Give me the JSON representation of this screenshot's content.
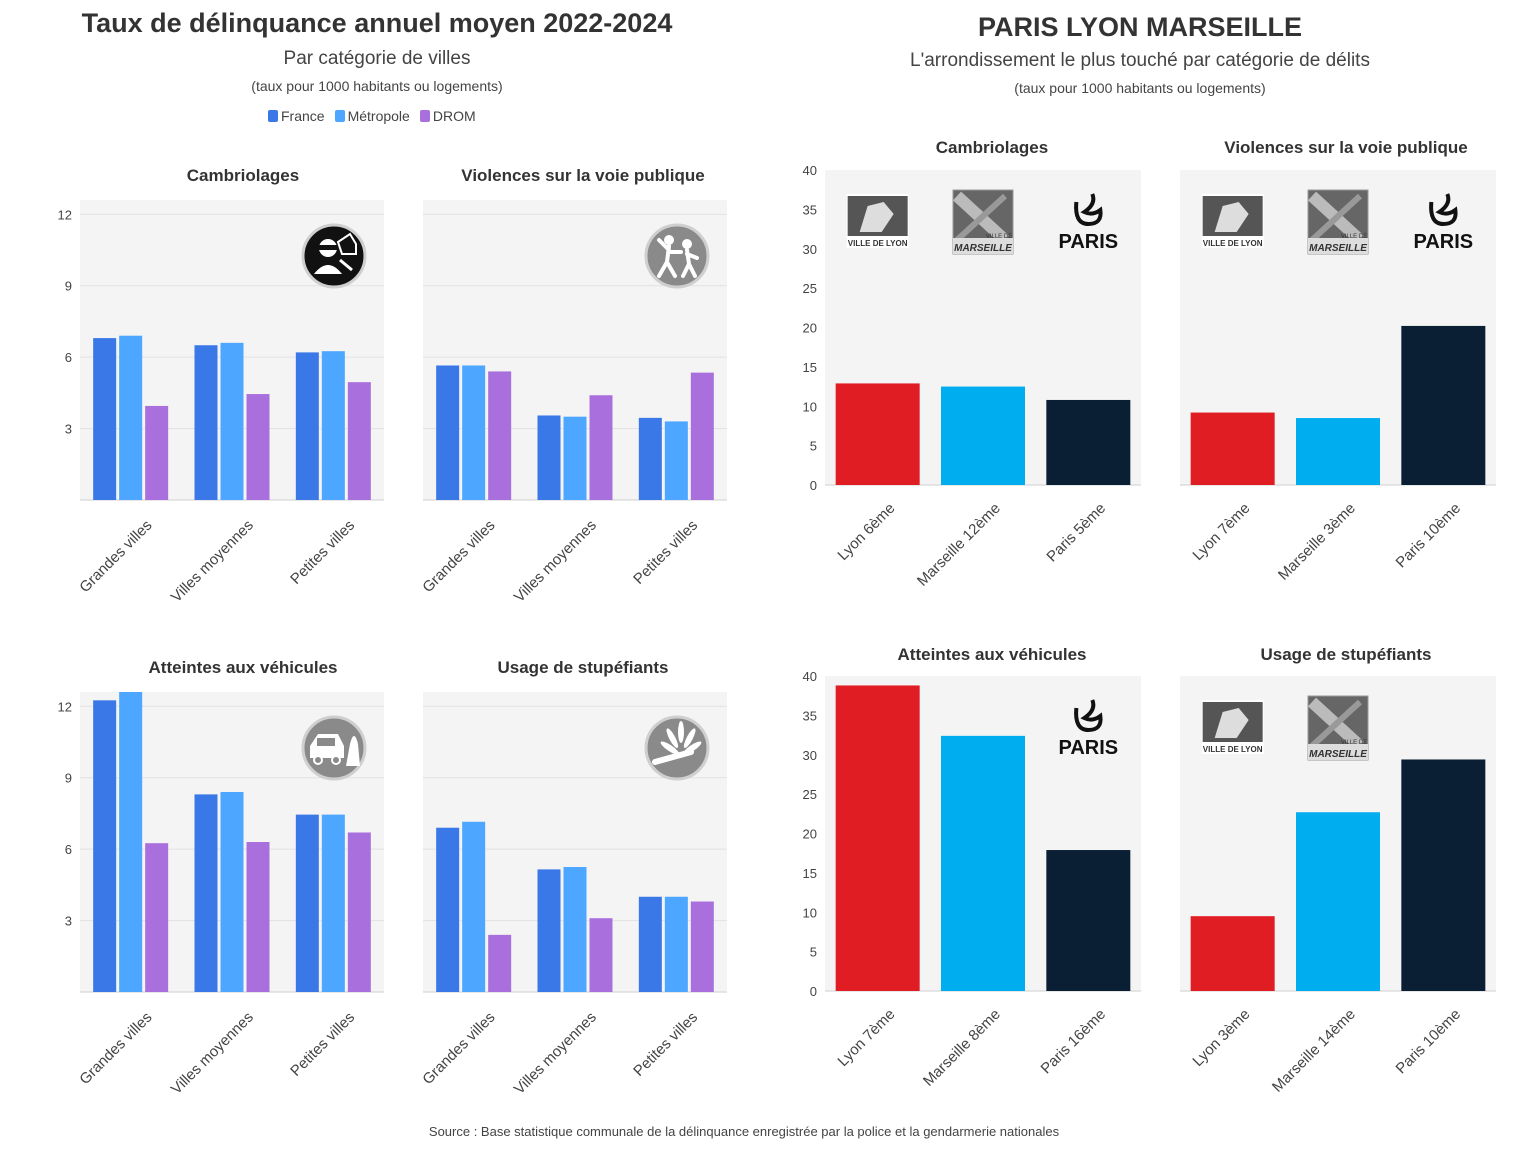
{
  "left": {
    "title": "Taux de délinquance annuel moyen 2022-2024",
    "subtitle": "Par catégorie de villes",
    "note": "(taux pour 1000 habitants ou logements)",
    "legend": [
      {
        "label": "France",
        "color": "#3B78E7"
      },
      {
        "label": "Métropole",
        "color": "#4DA6FF"
      },
      {
        "label": "DROM",
        "color": "#A970DD"
      }
    ]
  },
  "right": {
    "title": "PARIS LYON MARSEILLE",
    "subtitle": "L'arrondissement le plus touché par catégorie de délits",
    "note": "(taux pour 1000 habitants ou logements)",
    "logos": {
      "lyon": "VILLE DE LYON",
      "marseille_small": "VILLE DE",
      "marseille": "MARSEILLE",
      "paris": "PARIS"
    }
  },
  "source": "Source : Base statistique communale de la délinquance enregistrée par la police et la gendarmerie nationales",
  "colors": {
    "france": "#3B78E7",
    "metropole": "#4DA6FF",
    "drom": "#A970DD",
    "lyon": "#E11D24",
    "marseille": "#00AEEF",
    "paris": "#0A1F33"
  },
  "chart_data": [
    {
      "type": "bar",
      "title": "Cambriolages",
      "icon": "burglar-icon",
      "categories": [
        "Grandes villes",
        "Villes moyennes",
        "Petites villes"
      ],
      "series": [
        {
          "name": "France",
          "values": [
            6.8,
            6.5,
            6.2
          ]
        },
        {
          "name": "Métropole",
          "values": [
            6.9,
            6.6,
            6.25
          ]
        },
        {
          "name": "DROM",
          "values": [
            3.95,
            4.45,
            4.95
          ]
        }
      ],
      "yticks": [
        3,
        6,
        9,
        12
      ],
      "ylim": [
        0,
        12.6
      ],
      "grid": true
    },
    {
      "type": "bar",
      "title": "Violences sur la voie publique",
      "icon": "street-violence-icon",
      "categories": [
        "Grandes villes",
        "Villes moyennes",
        "Petites villes"
      ],
      "series": [
        {
          "name": "France",
          "values": [
            5.65,
            3.55,
            3.45
          ]
        },
        {
          "name": "Métropole",
          "values": [
            5.65,
            3.5,
            3.3
          ]
        },
        {
          "name": "DROM",
          "values": [
            5.4,
            4.4,
            5.35
          ]
        }
      ],
      "yticks": [
        3,
        6,
        9,
        12
      ],
      "ylim": [
        0,
        12.6
      ],
      "grid": true
    },
    {
      "type": "bar",
      "title": "Atteintes aux véhicules",
      "icon": "vehicle-theft-icon",
      "categories": [
        "Grandes villes",
        "Villes moyennes",
        "Petites villes"
      ],
      "series": [
        {
          "name": "France",
          "values": [
            12.25,
            8.3,
            7.45
          ]
        },
        {
          "name": "Métropole",
          "values": [
            12.6,
            8.4,
            7.45
          ]
        },
        {
          "name": "DROM",
          "values": [
            6.25,
            6.3,
            6.7
          ]
        }
      ],
      "yticks": [
        3,
        6,
        9,
        12
      ],
      "ylim": [
        0,
        12.6
      ],
      "grid": true
    },
    {
      "type": "bar",
      "title": "Usage de stupéfiants",
      "icon": "cannabis-icon",
      "categories": [
        "Grandes villes",
        "Villes moyennes",
        "Petites villes"
      ],
      "series": [
        {
          "name": "France",
          "values": [
            6.9,
            5.15,
            4.0
          ]
        },
        {
          "name": "Métropole",
          "values": [
            7.15,
            5.25,
            4.0
          ]
        },
        {
          "name": "DROM",
          "values": [
            2.4,
            3.1,
            3.8
          ]
        }
      ],
      "yticks": [
        3,
        6,
        9,
        12
      ],
      "ylim": [
        0,
        12.6
      ],
      "grid": true
    },
    {
      "type": "bar",
      "title": "Cambriolages",
      "categories": [
        "Lyon 6ème",
        "Marseille 12ème",
        "Paris 5ème"
      ],
      "values": [
        12.9,
        12.5,
        10.8
      ],
      "yticks": [
        0,
        5,
        10,
        15,
        20,
        25,
        30,
        35,
        40
      ],
      "ylim": [
        0,
        40
      ]
    },
    {
      "type": "bar",
      "title": "Violences sur la voie publique",
      "categories": [
        "Lyon 7ème",
        "Marseille 3ème",
        "Paris 10ème"
      ],
      "values": [
        9.2,
        8.5,
        20.2
      ],
      "yticks": [
        0,
        5,
        10,
        15,
        20,
        25,
        30,
        35,
        40
      ],
      "ylim": [
        0,
        40
      ]
    },
    {
      "type": "bar",
      "title": "Atteintes aux véhicules",
      "categories": [
        "Lyon 7ème",
        "Marseille 8ème",
        "Paris 16ème"
      ],
      "values": [
        38.8,
        32.4,
        17.9
      ],
      "yticks": [
        0,
        5,
        10,
        15,
        20,
        25,
        30,
        35,
        40
      ],
      "ylim": [
        0,
        40
      ]
    },
    {
      "type": "bar",
      "title": "Usage de stupéfiants",
      "categories": [
        "Lyon 3ème",
        "Marseille 14ème",
        "Paris 10ème"
      ],
      "values": [
        9.5,
        22.7,
        29.4
      ],
      "yticks": [
        0,
        5,
        10,
        15,
        20,
        25,
        30,
        35,
        40
      ],
      "ylim": [
        0,
        40
      ]
    }
  ]
}
